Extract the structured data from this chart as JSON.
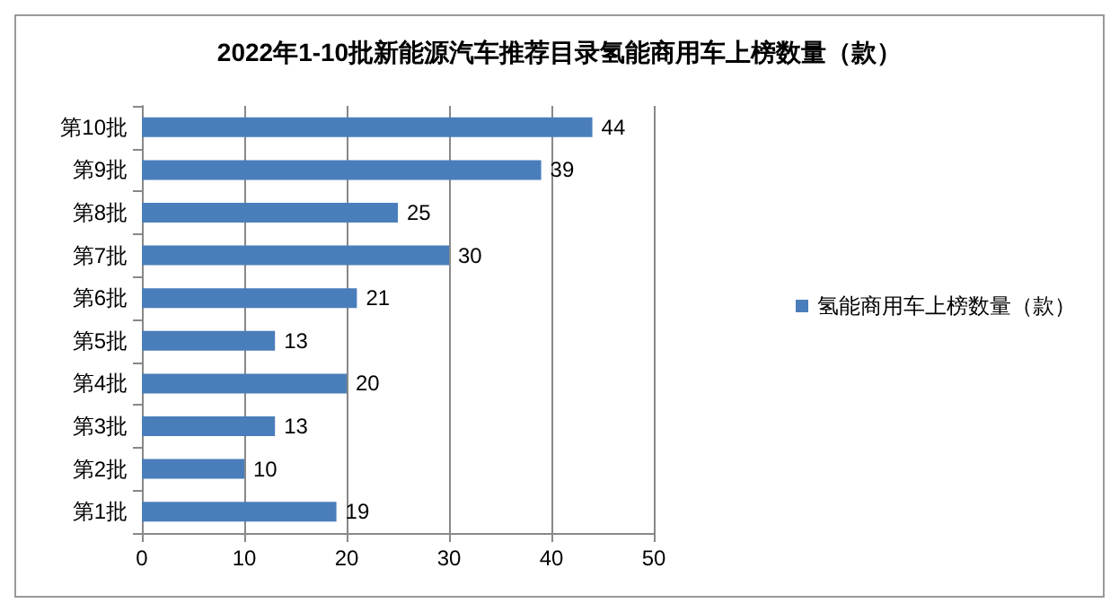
{
  "chart_data": {
    "type": "bar",
    "orientation": "horizontal",
    "title": "2022年1-10批新能源汽车推荐目录氢能商用车上榜数量（款）",
    "categories": [
      "第10批",
      "第9批",
      "第8批",
      "第7批",
      "第6批",
      "第5批",
      "第4批",
      "第3批",
      "第2批",
      "第1批"
    ],
    "series": [
      {
        "name": "氢能商用车上榜数量（款）",
        "color": "#4a7ebb",
        "values": [
          44,
          39,
          25,
          30,
          21,
          13,
          20,
          13,
          10,
          19
        ]
      }
    ],
    "xlim": [
      0,
      50
    ],
    "xticks": [
      0,
      10,
      20,
      30,
      40,
      50
    ],
    "grid": "x",
    "legend": "right",
    "data_labels": true
  }
}
